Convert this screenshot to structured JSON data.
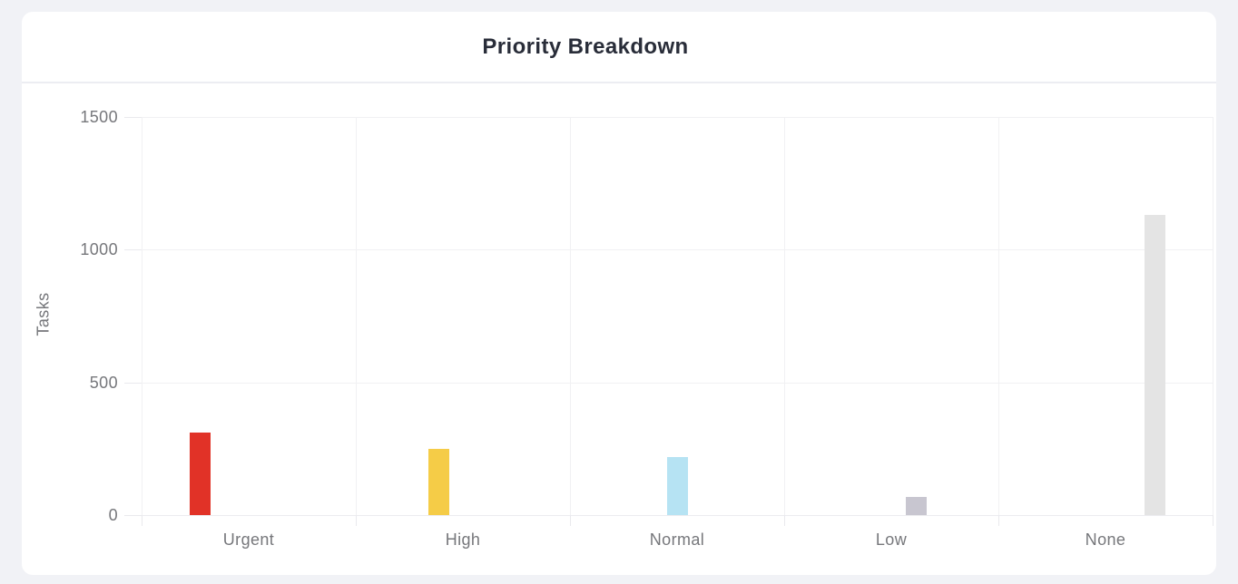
{
  "widget": {
    "title": "Priority Breakdown"
  },
  "chart_data": {
    "type": "bar",
    "title": "Priority Breakdown",
    "xlabel": "",
    "ylabel": "Tasks",
    "categories": [
      "Urgent",
      "High",
      "Normal",
      "Low",
      "None"
    ],
    "series": [
      {
        "name": "Urgent",
        "color": "#E13227",
        "values": [
          311,
          0,
          0,
          0,
          0
        ]
      },
      {
        "name": "High",
        "color": "#F5CC47",
        "values": [
          0,
          249,
          0,
          0,
          0
        ]
      },
      {
        "name": "Normal",
        "color": "#B6E3F3",
        "values": [
          0,
          0,
          219,
          0,
          0
        ]
      },
      {
        "name": "Low",
        "color": "#C8C6D0",
        "values": [
          0,
          0,
          0,
          68,
          0
        ]
      },
      {
        "name": "None",
        "color": "#E4E4E4",
        "values": [
          0,
          0,
          0,
          0,
          1131
        ]
      }
    ],
    "ylim": [
      0,
      1500
    ],
    "yticks": [
      0,
      500,
      1000,
      1500
    ],
    "grid": true,
    "legend_position": "none"
  },
  "colors": {
    "page_background": "#F1F2F6",
    "card_background": "#FFFFFF",
    "header_divider": "#ECEDF2",
    "title_text": "#292D39",
    "axis_text": "#76777B",
    "gridline": "#F1F1F3",
    "tick": "#E9E9ED"
  }
}
